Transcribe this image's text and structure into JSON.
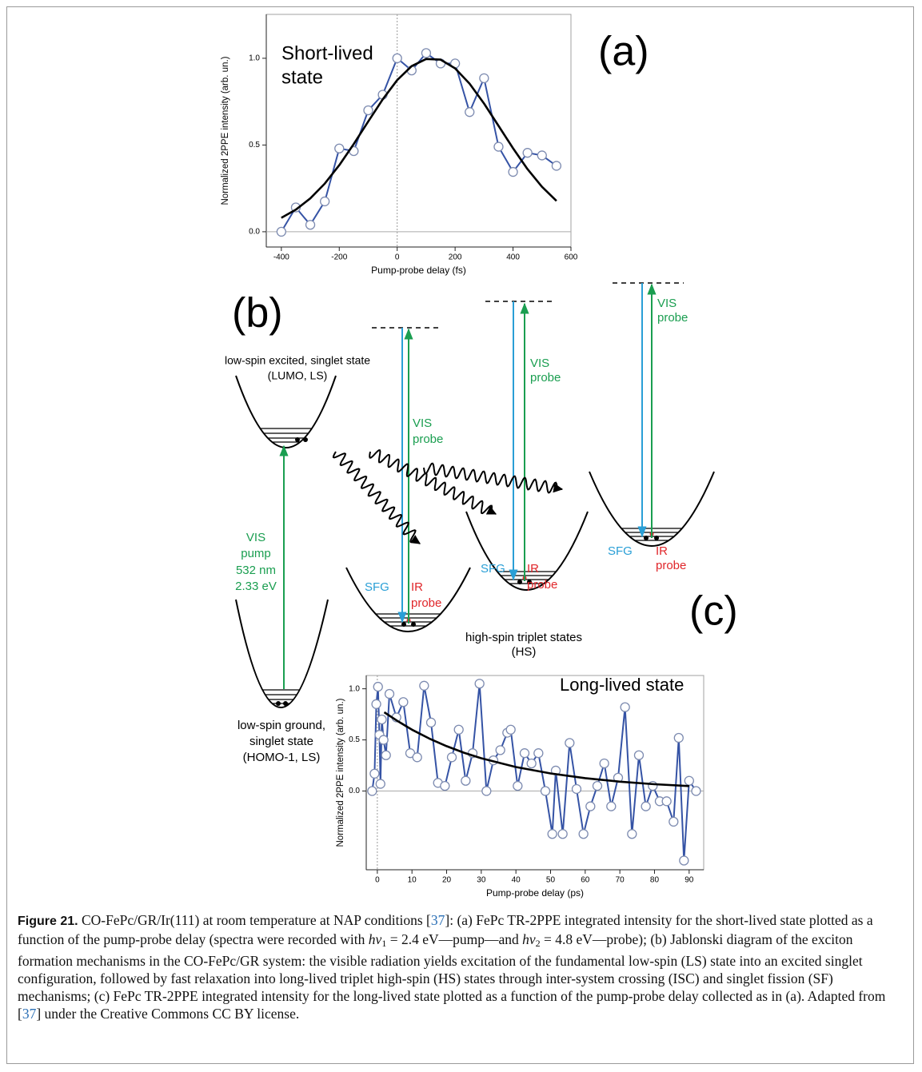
{
  "chart_data": [
    {
      "type": "line",
      "panel_label": "(a)",
      "title": [
        "Short-lived",
        "state"
      ],
      "xlabel": "Pump-probe delay (fs)",
      "ylabel": "Normalized 2PPE intensity (arb. un.)",
      "xlim": [
        -452,
        600
      ],
      "ylim": [
        -0.088,
        1.253
      ],
      "xticks": [
        -400,
        -200,
        0,
        200,
        400,
        600
      ],
      "yticks": [
        {
          "value": 0,
          "label": "0.0"
        },
        0.5,
        {
          "value": 1,
          "label": "1.0"
        }
      ],
      "zero_lines": true,
      "x": [
        -400,
        -350,
        -300,
        -250,
        -200,
        -150,
        -100,
        -50,
        0,
        50,
        100,
        150,
        200,
        250,
        300,
        350,
        400,
        450,
        500,
        550
      ],
      "series": [
        {
          "color": "#3553a5",
          "markers": true,
          "marker_color": "#7d8bb0",
          "values": [
            0.0,
            0.14,
            0.04,
            0.175,
            0.48,
            0.465,
            0.7,
            0.79,
            1.0,
            0.93,
            1.03,
            0.97,
            0.97,
            0.69,
            0.885,
            0.49,
            0.345,
            0.455,
            0.44,
            0.38
          ]
        },
        {
          "color": "#000000",
          "markers": false,
          "values": [
            0.08,
            0.127,
            0.192,
            0.278,
            0.384,
            0.506,
            0.636,
            0.763,
            0.874,
            0.955,
            0.996,
            0.992,
            0.942,
            0.854,
            0.739,
            0.61,
            0.481,
            0.361,
            0.259,
            0.178
          ]
        }
      ]
    },
    {
      "type": "line",
      "panel_label": "(c)",
      "title": "Long-lived state",
      "xlabel": "Pump-probe delay (ps)",
      "ylabel": "Normalized 2PPE intensity (arb. un.)",
      "xlim": [
        -3.2,
        94.2
      ],
      "ylim": [
        -0.77,
        1.13
      ],
      "xticks": [
        0,
        10,
        20,
        30,
        40,
        50,
        60,
        70,
        80,
        90
      ],
      "yticks": [
        {
          "value": 0,
          "label": "0.0"
        },
        0.5,
        {
          "value": 1,
          "label": "1.0"
        }
      ],
      "zero_lines": true,
      "series": [
        {
          "color": "#3553a5",
          "markers": true,
          "marker_color": "#7d8bb0",
          "x": [
            -1.5,
            -0.8,
            -0.3,
            0.2,
            0.6,
            0.9,
            1.3,
            1.8,
            2.5,
            3.5,
            5.5,
            7.5,
            9.5,
            11.5,
            13.5,
            15.5,
            17.5,
            19.5,
            21.5,
            23.5,
            25.5,
            27.5,
            29.5,
            31.5,
            33.5,
            35.5,
            37.5,
            38.5,
            40.5,
            42.5,
            44.5,
            46.5,
            48.5,
            50.5,
            51.5,
            53.5,
            55.5,
            57.5,
            59.5,
            61.5,
            63.5,
            65.5,
            67.5,
            69.5,
            71.5,
            73.5,
            75.5,
            77.5,
            79.5,
            81.5,
            83.5,
            85.5,
            87,
            88.5,
            90,
            92
          ],
          "values": [
            0.0,
            0.17,
            0.85,
            1.02,
            0.55,
            0.07,
            0.7,
            0.5,
            0.35,
            0.95,
            0.72,
            0.87,
            0.37,
            0.33,
            1.03,
            0.67,
            0.08,
            0.05,
            0.33,
            0.6,
            0.1,
            0.37,
            1.05,
            0.0,
            0.3,
            0.4,
            0.57,
            0.6,
            0.05,
            0.37,
            0.27,
            0.37,
            0.0,
            -0.42,
            0.2,
            -0.42,
            0.47,
            0.02,
            -0.42,
            -0.15,
            0.05,
            0.27,
            -0.15,
            0.13,
            0.82,
            -0.42,
            0.35,
            -0.15,
            0.05,
            -0.1,
            -0.1,
            -0.3,
            0.52,
            -0.68,
            0.1,
            0.0
          ]
        },
        {
          "color": "#000000",
          "markers": false,
          "x": [
            2,
            6,
            10,
            15,
            20,
            25,
            30,
            40,
            50,
            60,
            70,
            80,
            90
          ],
          "values": [
            0.77,
            0.681,
            0.6,
            0.513,
            0.439,
            0.375,
            0.321,
            0.235,
            0.172,
            0.126,
            0.092,
            0.067,
            0.049
          ]
        }
      ]
    }
  ],
  "diagram": {
    "panel_label": "(b)",
    "excited_state": [
      "low-spin excited, singlet state",
      "(LUMO, LS)"
    ],
    "pump": [
      "VIS",
      "pump",
      "532 nm",
      "2.33 eV"
    ],
    "ground_state": [
      "low-spin ground,",
      "singlet state",
      "(HOMO-1, LS)"
    ],
    "triplet_states": [
      "high-spin triplet states",
      "(HS)"
    ],
    "probes": [
      {
        "vis": [
          "VIS",
          "probe"
        ],
        "sfg": "SFG",
        "ir": [
          "IR",
          "probe"
        ]
      },
      {
        "vis": [
          "VIS",
          "probe"
        ],
        "sfg": "SFG",
        "ir": [
          "IR",
          "probe"
        ]
      },
      {
        "vis": [
          "VIS",
          "probe"
        ],
        "sfg": "SFG",
        "ir": [
          "IR",
          "probe"
        ]
      }
    ]
  },
  "caption": [
    {
      "text": "Figure 21.",
      "style": "bold"
    },
    {
      "text": " CO-FePc/GR/Ir(111) at room temperature at NAP conditions ["
    },
    {
      "text": "37",
      "style": "link"
    },
    {
      "text": "]: (a) FePc TR-2PPE integrated intensity for the short-lived state plotted as a function of the pump-probe delay (spectra were recorded with "
    },
    {
      "text": "hν",
      "style": "italic"
    },
    {
      "text": "1",
      "style": "sub"
    },
    {
      "text": " = 2.4 eV—pump—and "
    },
    {
      "text": "hν",
      "style": "italic"
    },
    {
      "text": "2",
      "style": "sub"
    },
    {
      "text": " = 4.8 eV—probe); (b) Jablonski diagram of the exciton formation mechanisms in the CO-FePc/GR system: the visible radiation yields excitation of the fundamental low-spin (LS) state into an excited singlet configuration, followed by fast relaxation into long-lived triplet high-spin (HS) states through inter-system crossing (ISC) and singlet fission (SF) mechanisms; (c) FePc TR-2PPE integrated intensity for the long-lived state plotted as a function of the pump-probe delay collected as in (a). Adapted from ["
    },
    {
      "text": "37",
      "style": "link"
    },
    {
      "text": "] under the Creative Commons CC BY license."
    }
  ]
}
